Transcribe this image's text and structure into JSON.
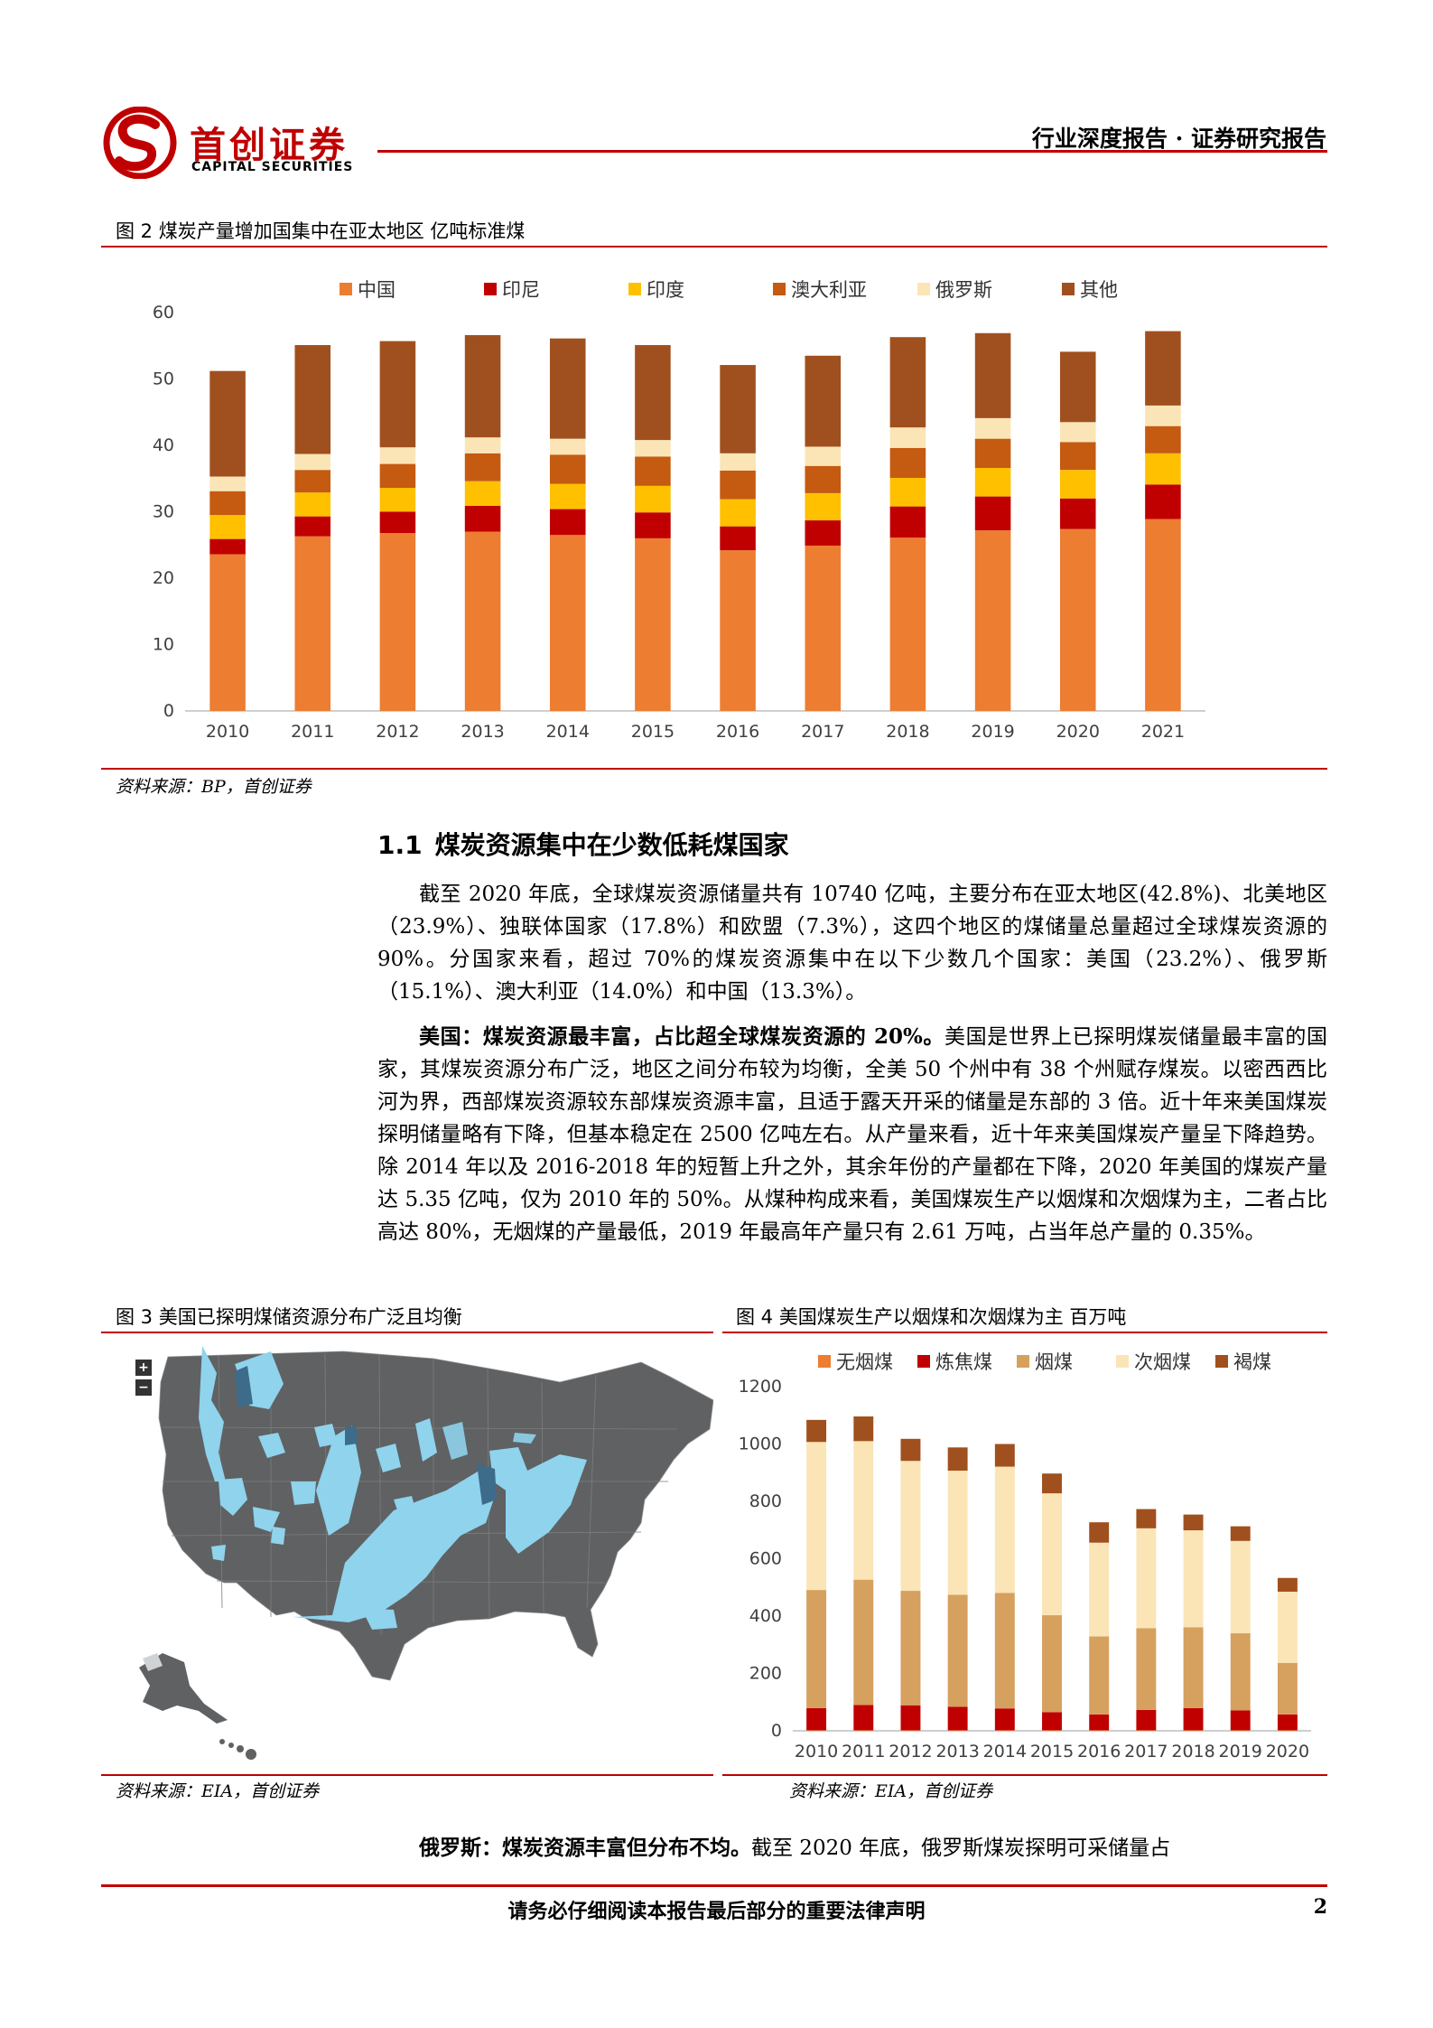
{
  "header": {
    "logo_cn": "首创证券",
    "logo_en": "CAPITAL SECURITIES",
    "report_type": "行业深度报告 · 证券研究报告",
    "brand_color": "#c00000"
  },
  "figure2": {
    "caption": "图 2 煤炭产量增加国集中在亚太地区 亿吨标准煤",
    "source": "资料来源：BP，首创证券"
  },
  "chart_data": [
    {
      "type": "bar",
      "stacked": true,
      "categories": [
        "2010",
        "2011",
        "2012",
        "2013",
        "2014",
        "2015",
        "2016",
        "2017",
        "2018",
        "2019",
        "2020",
        "2021"
      ],
      "ylim": [
        0,
        60
      ],
      "yticks": [
        0,
        10,
        20,
        30,
        40,
        50,
        60
      ],
      "legend_position": "top",
      "series": [
        {
          "name": "中国",
          "color": "#ed7d31",
          "values": [
            23.6,
            26.3,
            26.8,
            27.0,
            26.5,
            26.0,
            24.2,
            24.9,
            26.1,
            27.2,
            27.4,
            28.9
          ]
        },
        {
          "name": "印尼",
          "color": "#c00000",
          "values": [
            2.3,
            3.0,
            3.2,
            3.9,
            3.9,
            3.9,
            3.6,
            3.8,
            4.7,
            5.1,
            4.6,
            5.2
          ]
        },
        {
          "name": "印度",
          "color": "#ffc000",
          "values": [
            3.6,
            3.6,
            3.6,
            3.7,
            3.8,
            4.0,
            4.1,
            4.1,
            4.3,
            4.3,
            4.3,
            4.7
          ]
        },
        {
          "name": "澳大利亚",
          "color": "#c55a11",
          "values": [
            3.6,
            3.4,
            3.6,
            4.2,
            4.4,
            4.4,
            4.3,
            4.1,
            4.5,
            4.4,
            4.2,
            4.1
          ]
        },
        {
          "name": "俄罗斯",
          "color": "#fbe5b6",
          "values": [
            2.2,
            2.4,
            2.5,
            2.4,
            2.4,
            2.5,
            2.6,
            2.9,
            3.1,
            3.1,
            3.0,
            3.1
          ]
        },
        {
          "name": "其他",
          "color": "#a0501e",
          "values": [
            15.9,
            16.4,
            16.0,
            15.4,
            15.1,
            14.3,
            13.3,
            13.7,
            13.6,
            12.8,
            10.6,
            11.2
          ]
        }
      ]
    },
    {
      "type": "bar",
      "stacked": true,
      "categories": [
        "2010",
        "2011",
        "2012",
        "2013",
        "2014",
        "2015",
        "2016",
        "2017",
        "2018",
        "2019",
        "2020"
      ],
      "ylim": [
        0,
        1200
      ],
      "yticks": [
        0,
        200,
        400,
        600,
        800,
        1000,
        1200
      ],
      "legend_position": "top",
      "series": [
        {
          "name": "无烟煤",
          "color": "#ed7d31",
          "values": [
            2,
            2,
            2,
            2,
            2,
            2,
            2,
            2,
            2,
            2,
            2
          ]
        },
        {
          "name": "炼焦煤",
          "color": "#c00000",
          "values": [
            77,
            88,
            87,
            82,
            76,
            63,
            55,
            71,
            77,
            69,
            55
          ]
        },
        {
          "name": "烟煤",
          "color": "#d6a05e",
          "values": [
            412,
            437,
            399,
            390,
            403,
            338,
            272,
            285,
            282,
            269,
            180
          ]
        },
        {
          "name": "次烟煤",
          "color": "#fbe5b6",
          "values": [
            516,
            483,
            453,
            433,
            440,
            425,
            327,
            348,
            338,
            322,
            248
          ]
        },
        {
          "name": "褐煤",
          "color": "#a0501e",
          "values": [
            77,
            86,
            77,
            81,
            79,
            69,
            71,
            67,
            55,
            51,
            48
          ]
        }
      ]
    }
  ],
  "section": {
    "number": "1.1",
    "title": "煤炭资源集中在少数低耗煤国家",
    "para1": "截至 2020 年底，全球煤炭资源储量共有 10740 亿吨，主要分布在亚太地区(42.8%)、北美地区（23.9%）、独联体国家（17.8%）和欧盟（7.3%），这四个地区的煤储量总量超过全球煤炭资源的 90%。分国家来看，超过 70%的煤炭资源集中在以下少数几个国家：美国（23.2%）、俄罗斯（15.1%）、澳大利亚（14.0%）和中国（13.3%）。",
    "para2_bold": "美国：煤炭资源最丰富，占比超全球煤炭资源的 20%。",
    "para2": "美国是世界上已探明煤炭储量最丰富的国家，其煤炭资源分布广泛，地区之间分布较为均衡，全美 50 个州中有 38 个州赋存煤炭。以密西西比河为界，西部煤炭资源较东部煤炭资源丰富，且适于露天开采的储量是东部的 3 倍。近十年来美国煤炭探明储量略有下降，但基本稳定在 2500 亿吨左右。从产量来看，近十年来美国煤炭产量呈下降趋势。除 2014 年以及 2016-2018 年的短暂上升之外，其余年份的产量都在下降，2020 年美国的煤炭产量达 5.35 亿吨，仅为 2010 年的 50%。从煤种构成来看，美国煤炭生产以烟煤和次烟煤为主，二者占比高达 80%，无烟煤的产量最低，2019 年最高年产量只有 2.61 万吨，占当年总产量的 0.35%。",
    "para3_bold": "俄罗斯：煤炭资源丰富但分布不均。",
    "para3": "截至 2020 年底，俄罗斯煤炭探明可采储量占"
  },
  "figure3": {
    "caption": "图 3 美国已探明煤储资源分布广泛且均衡",
    "source": "资料来源：EIA，首创证券",
    "zoom_in": "+",
    "zoom_out": "−",
    "land_color": "#5f6163",
    "coal_color": "#8fd3ec"
  },
  "figure4": {
    "caption": "图 4 美国煤炭生产以烟煤和次烟煤为主 百万吨",
    "source": "资料来源：EIA，首创证券"
  },
  "footer": {
    "notice": "请务必仔细阅读本报告最后部分的重要法律声明",
    "page": "2"
  }
}
